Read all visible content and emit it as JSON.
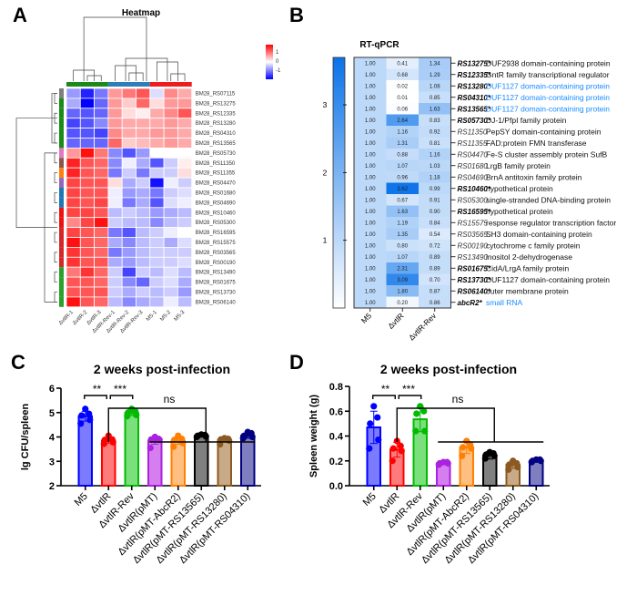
{
  "panels": {
    "A": "A",
    "B": "B",
    "C": "C",
    "D": "D"
  },
  "chart_data": [
    {
      "panel": "A",
      "type": "heatmap",
      "title": "Heatmap",
      "columns": [
        "ΔvtlR-1",
        "ΔvtlR-2",
        "ΔvtlR-3",
        "ΔvtlR-Rev-1",
        "ΔvtlR-Rev-2",
        "ΔvtlR-Rev-3",
        "M5-1",
        "M5-2",
        "M5-3"
      ],
      "column_groups": [
        {
          "name": "ΔvtlR",
          "color": "#1a8a1a"
        },
        {
          "name": "ΔvtlR-Rev",
          "color": "#2c7fb8"
        },
        {
          "name": "M5",
          "color": "#ee1c1c"
        }
      ],
      "rows": [
        "BM28_RS07115",
        "BM28_RS13275",
        "BM28_RS12335",
        "BM28_RS13280",
        "BM28_RS04310",
        "BM28_RS13565",
        "BM28_RS05730",
        "BM28_RS11350",
        "BM28_RS11355",
        "BM28_RS04470",
        "BM28_RS01680",
        "BM28_RS04690",
        "BM28_RS10460",
        "BM28_RS05300",
        "BM28_RS16595",
        "BM28_RS15575",
        "BM28_RS03565",
        "BM28_RS00190",
        "BM28_RS13490",
        "BM28_RS01675",
        "BM28_RS13730",
        "BM28_RS06140"
      ],
      "row_group_colors": [
        "#7f7f7f",
        "#1a8a1a",
        "#1a8a1a",
        "#1a8a1a",
        "#1a8a1a",
        "#1a8a1a",
        "#e377c2",
        "#8c564b",
        "#ff7f0e",
        "#9467bd",
        "#1f77b4",
        "#1f77b4",
        "#ee1111",
        "#ee1111",
        "#d62728",
        "#d62728",
        "#d62728",
        "#d62728",
        "#2ca02c",
        "#2ca02c",
        "#2ca02c",
        "#2ca02c"
      ],
      "values": [
        [
          -0.6,
          -1.3,
          -0.8,
          0.6,
          0.8,
          1.0,
          -0.2,
          0.7,
          0.5
        ],
        [
          -0.5,
          -1.5,
          -0.9,
          0.6,
          0.3,
          0.9,
          0.2,
          0.6,
          0.6
        ],
        [
          -0.9,
          -1.0,
          -0.9,
          0.6,
          0.2,
          0.1,
          0.5,
          0.7,
          1.0
        ],
        [
          -1.1,
          -1.0,
          -0.7,
          0.6,
          0.5,
          0.5,
          0.5,
          0.6,
          0.5
        ],
        [
          -1.0,
          -1.0,
          -1.1,
          0.7,
          0.5,
          0.5,
          0.6,
          0.6,
          0.5
        ],
        [
          -0.9,
          -0.9,
          -0.9,
          0.9,
          0.3,
          0.4,
          0.5,
          0.6,
          0.5
        ],
        [
          0.6,
          1.4,
          0.8,
          -0.7,
          -1.0,
          -0.6,
          0.0,
          0.0,
          0.0
        ],
        [
          1.3,
          1.0,
          0.9,
          -0.7,
          -0.1,
          -0.5,
          -1.0,
          -0.3,
          0.1
        ],
        [
          1.3,
          1.0,
          0.9,
          -0.8,
          -0.3,
          -0.8,
          -0.3,
          -0.3,
          0.2
        ],
        [
          1.1,
          1.0,
          1.0,
          0.2,
          -0.5,
          -0.3,
          -1.4,
          -0.1,
          -0.3
        ],
        [
          1.1,
          1.0,
          1.0,
          -0.1,
          -0.6,
          -0.5,
          -0.8,
          -0.3,
          -0.2
        ],
        [
          1.1,
          1.0,
          1.1,
          -0.1,
          -0.8,
          -0.5,
          -1.0,
          -0.2,
          -0.1
        ],
        [
          1.1,
          1.1,
          1.0,
          -0.4,
          -0.3,
          -0.4,
          -0.6,
          -0.5,
          -0.4
        ],
        [
          0.7,
          1.1,
          1.4,
          -0.3,
          -0.4,
          -0.4,
          -0.7,
          -0.4,
          -0.3
        ],
        [
          1.1,
          1.0,
          0.9,
          -0.8,
          -1.0,
          -0.4,
          -0.3,
          -0.1,
          0.0
        ],
        [
          1.4,
          1.0,
          0.9,
          -0.5,
          -0.7,
          -0.4,
          -0.3,
          -0.5,
          -0.2
        ],
        [
          1.2,
          1.0,
          0.9,
          -0.8,
          -0.6,
          -0.4,
          -0.3,
          -0.3,
          -0.3
        ],
        [
          1.2,
          1.0,
          1.0,
          -0.5,
          -0.6,
          -0.4,
          -0.3,
          -0.3,
          -0.2
        ],
        [
          0.8,
          1.2,
          0.9,
          -0.3,
          -1.1,
          -0.3,
          -0.4,
          -0.2,
          -0.4
        ],
        [
          1.0,
          1.0,
          0.9,
          -0.3,
          -0.7,
          -0.9,
          -0.3,
          -0.2,
          -0.5
        ],
        [
          1.0,
          1.0,
          1.0,
          -0.3,
          -0.5,
          -0.3,
          -0.4,
          -0.3,
          -0.6
        ],
        [
          1.4,
          1.0,
          0.9,
          -0.4,
          -0.7,
          -0.5,
          -0.4,
          -0.1,
          -0.4
        ]
      ],
      "color_scale": {
        "min": -1.5,
        "max": 1.5,
        "low": "#0000ff",
        "mid": "#ffffff",
        "high": "#ff0000",
        "ticks": [
          1,
          0,
          -1
        ]
      }
    },
    {
      "panel": "B",
      "type": "heatmap",
      "title": "RT-qPCR",
      "columns": [
        "M5",
        "ΔvtlR",
        "ΔvtlR-Rev"
      ],
      "color_scale": {
        "min": 0,
        "max": 3.7,
        "ticks": [
          3,
          2,
          1
        ],
        "low": "#ffffff",
        "high": "#0a72e8"
      },
      "rows": [
        {
          "gene": "RS13275*",
          "bold": true,
          "desc": "DUF2938 domain-containing protein",
          "desc_blue": false,
          "values": [
            1.0,
            0.41,
            1.34
          ]
        },
        {
          "gene": "RS12335*",
          "bold": true,
          "desc": "GntR family transcriptional regulator",
          "desc_blue": false,
          "values": [
            1.0,
            0.68,
            1.29
          ]
        },
        {
          "gene": "RS13280*",
          "bold": true,
          "desc": "DUF1127 domain-containing protein",
          "desc_blue": true,
          "values": [
            1.0,
            0.02,
            1.08
          ]
        },
        {
          "gene": "RS04310*",
          "bold": true,
          "desc": "DUF1127 domain-containing protein",
          "desc_blue": true,
          "values": [
            1.0,
            0.01,
            0.85
          ]
        },
        {
          "gene": "RS13565*",
          "bold": true,
          "desc": "DUF1127 domain-containing protein",
          "desc_blue": true,
          "values": [
            1.0,
            0.06,
            1.63
          ]
        },
        {
          "gene": "RS05730*",
          "bold": true,
          "desc": "DJ-1/PfpI family protein",
          "desc_blue": false,
          "values": [
            1.0,
            2.64,
            0.83
          ]
        },
        {
          "gene": "RS11350",
          "bold": false,
          "desc": "PepSY domain-containing protein",
          "desc_blue": false,
          "values": [
            1.0,
            1.16,
            0.92
          ]
        },
        {
          "gene": "RS11355",
          "bold": false,
          "desc": "FAD:protein FMN transferase",
          "desc_blue": false,
          "values": [
            1.0,
            1.31,
            0.81
          ]
        },
        {
          "gene": "RS04470",
          "bold": false,
          "desc": "Fe-S cluster assembly protein SufB",
          "desc_blue": false,
          "values": [
            1.0,
            0.88,
            1.16
          ]
        },
        {
          "gene": "RS01680",
          "bold": false,
          "desc": "LrgB family protein",
          "desc_blue": false,
          "values": [
            1.0,
            1.07,
            1.03
          ]
        },
        {
          "gene": "RS04690",
          "bold": false,
          "desc": "BrnA antitoxin family protein",
          "desc_blue": false,
          "values": [
            1.0,
            0.96,
            1.18
          ]
        },
        {
          "gene": "RS10460*",
          "bold": true,
          "desc": "hypothetical protein",
          "desc_blue": false,
          "values": [
            1.0,
            3.62,
            0.99
          ]
        },
        {
          "gene": "RS05300",
          "bold": false,
          "desc": "single-stranded DNA-binding protein",
          "desc_blue": false,
          "values": [
            1.0,
            0.67,
            0.91
          ]
        },
        {
          "gene": "RS16595*",
          "bold": true,
          "desc": "hypothetical protein",
          "desc_blue": false,
          "values": [
            1.0,
            1.63,
            0.9
          ]
        },
        {
          "gene": "RS15575",
          "bold": false,
          "desc": "response regulator transcription factor",
          "desc_blue": false,
          "values": [
            1.0,
            1.19,
            0.84
          ]
        },
        {
          "gene": "RS03565",
          "bold": false,
          "desc": "SH3 domain-containing protein",
          "desc_blue": false,
          "values": [
            1.0,
            1.35,
            0.54
          ]
        },
        {
          "gene": "RS00190",
          "bold": false,
          "desc": "cytochrome c family protein",
          "desc_blue": false,
          "values": [
            1.0,
            0.8,
            0.72
          ]
        },
        {
          "gene": "RS13490",
          "bold": false,
          "desc": "inositol 2-dehydrogenase",
          "desc_blue": false,
          "values": [
            1.0,
            1.07,
            0.89
          ]
        },
        {
          "gene": "RS01675*",
          "bold": true,
          "desc": "CidA/LrgA family protein",
          "desc_blue": false,
          "values": [
            1.0,
            2.31,
            0.89
          ]
        },
        {
          "gene": "RS13730*",
          "bold": true,
          "desc": "DUF1127 domain-containing protein",
          "desc_blue": false,
          "values": [
            1.0,
            3.09,
            0.7
          ]
        },
        {
          "gene": "RS06140*",
          "bold": true,
          "desc": "outer membrane protein",
          "desc_blue": false,
          "values": [
            1.0,
            1.8,
            0.87
          ]
        },
        {
          "gene": "abcR2*",
          "bold": true,
          "desc": "small RNA",
          "desc_blue": true,
          "values": [
            1.0,
            0.2,
            0.86
          ]
        }
      ]
    },
    {
      "panel": "C",
      "type": "bar",
      "title": "2 weeks post-infection",
      "ylabel": "lg CFU/spleen",
      "xlabel": "",
      "ylim": [
        2,
        6
      ],
      "yticks": [
        2,
        3,
        4,
        5,
        6
      ],
      "categories": [
        "M5",
        "ΔvtlR",
        "ΔvtlR-Rev",
        "ΔvtlR(pMT)",
        "ΔvtlR(pMT-AbcR2)",
        "ΔvtlR(pMT-RS13565)",
        "ΔvtlR(pMT-RS13280)",
        "ΔvtlR(pMT-RS04310)"
      ],
      "values": [
        4.85,
        3.85,
        4.98,
        3.85,
        3.85,
        4.05,
        3.88,
        4.05
      ],
      "errors": [
        0.2,
        0.1,
        0.1,
        0.15,
        0.15,
        0.05,
        0.08,
        0.1
      ],
      "points": [
        [
          4.55,
          4.7,
          4.88,
          4.95,
          5.15
        ],
        [
          3.72,
          3.78,
          3.88,
          3.9,
          4.05
        ],
        [
          4.85,
          4.9,
          5.0,
          5.05,
          5.15
        ],
        [
          3.55,
          3.88,
          3.9,
          3.92,
          4.0
        ],
        [
          3.6,
          3.75,
          3.88,
          3.92,
          4.05
        ],
        [
          4.0,
          4.02,
          4.05,
          4.08,
          4.1
        ],
        [
          3.7,
          3.85,
          3.9,
          3.92,
          3.95
        ],
        [
          3.95,
          4.0,
          4.05,
          4.15,
          4.2
        ]
      ],
      "colors": {
        "fill": [
          "#7b7bff",
          "#ff7b7b",
          "#7be07b",
          "#d57ef0",
          "#ffbf80",
          "#808080",
          "#c8aa88",
          "#7f7fbf"
        ],
        "edge": [
          "#0000ff",
          "#ff0000",
          "#00bb00",
          "#aa22dd",
          "#ff8000",
          "#000000",
          "#8b5a20",
          "#000080"
        ]
      },
      "significance": [
        {
          "pair": [
            "M5",
            "ΔvtlR"
          ],
          "label": "**"
        },
        {
          "pair": [
            "ΔvtlR",
            "ΔvtlR-Rev"
          ],
          "label": "***"
        },
        {
          "pair": [
            "ΔvtlR",
            "ΔvtlR(pMT)…ΔvtlR(pMT-RS04310)"
          ],
          "label": "ns"
        }
      ]
    },
    {
      "panel": "D",
      "type": "bar",
      "title": "2 weeks post-infection",
      "ylabel": "Spleen weight (g)",
      "xlabel": "",
      "ylim": [
        0.0,
        0.8
      ],
      "yticks": [
        0.0,
        0.2,
        0.4,
        0.6,
        0.8
      ],
      "categories": [
        "M5",
        "ΔvtlR",
        "ΔvtlR-Rev",
        "ΔvtlR(pMT)",
        "ΔvtlR(pMT-AbcR2)",
        "ΔvtlR(pMT-RS13565)",
        "ΔvtlR(pMT-RS13280)",
        "ΔvtlR(pMT-RS04310)"
      ],
      "values": [
        0.47,
        0.29,
        0.535,
        0.18,
        0.31,
        0.245,
        0.17,
        0.2
      ],
      "errors": [
        0.13,
        0.06,
        0.1,
        0.01,
        0.05,
        0.03,
        0.03,
        0.01
      ],
      "points": [
        [
          0.3,
          0.37,
          0.5,
          0.55,
          0.64
        ],
        [
          0.2,
          0.28,
          0.3,
          0.32,
          0.36
        ],
        [
          0.44,
          0.44,
          0.58,
          0.6,
          0.64
        ],
        [
          0.17,
          0.18,
          0.18,
          0.19,
          0.19
        ],
        [
          0.24,
          0.3,
          0.31,
          0.33,
          0.36
        ],
        [
          0.22,
          0.24,
          0.25,
          0.26,
          0.27
        ],
        [
          0.13,
          0.15,
          0.17,
          0.18,
          0.2
        ],
        [
          0.19,
          0.2,
          0.2,
          0.21,
          0.21
        ]
      ],
      "colors": {
        "fill": [
          "#7b7bff",
          "#ff7b7b",
          "#7be07b",
          "#d57ef0",
          "#ffbf80",
          "#808080",
          "#c8aa88",
          "#7f7fbf"
        ],
        "edge": [
          "#0000ff",
          "#ff0000",
          "#00bb00",
          "#aa22dd",
          "#ff8000",
          "#000000",
          "#8b5a20",
          "#000080"
        ]
      },
      "significance": [
        {
          "pair": [
            "M5",
            "ΔvtlR"
          ],
          "label": "**"
        },
        {
          "pair": [
            "ΔvtlR",
            "ΔvtlR-Rev"
          ],
          "label": "***"
        },
        {
          "pair": [
            "ΔvtlR",
            "ΔvtlR(pMT)…ΔvtlR(pMT-RS04310)"
          ],
          "label": "ns"
        }
      ]
    }
  ]
}
